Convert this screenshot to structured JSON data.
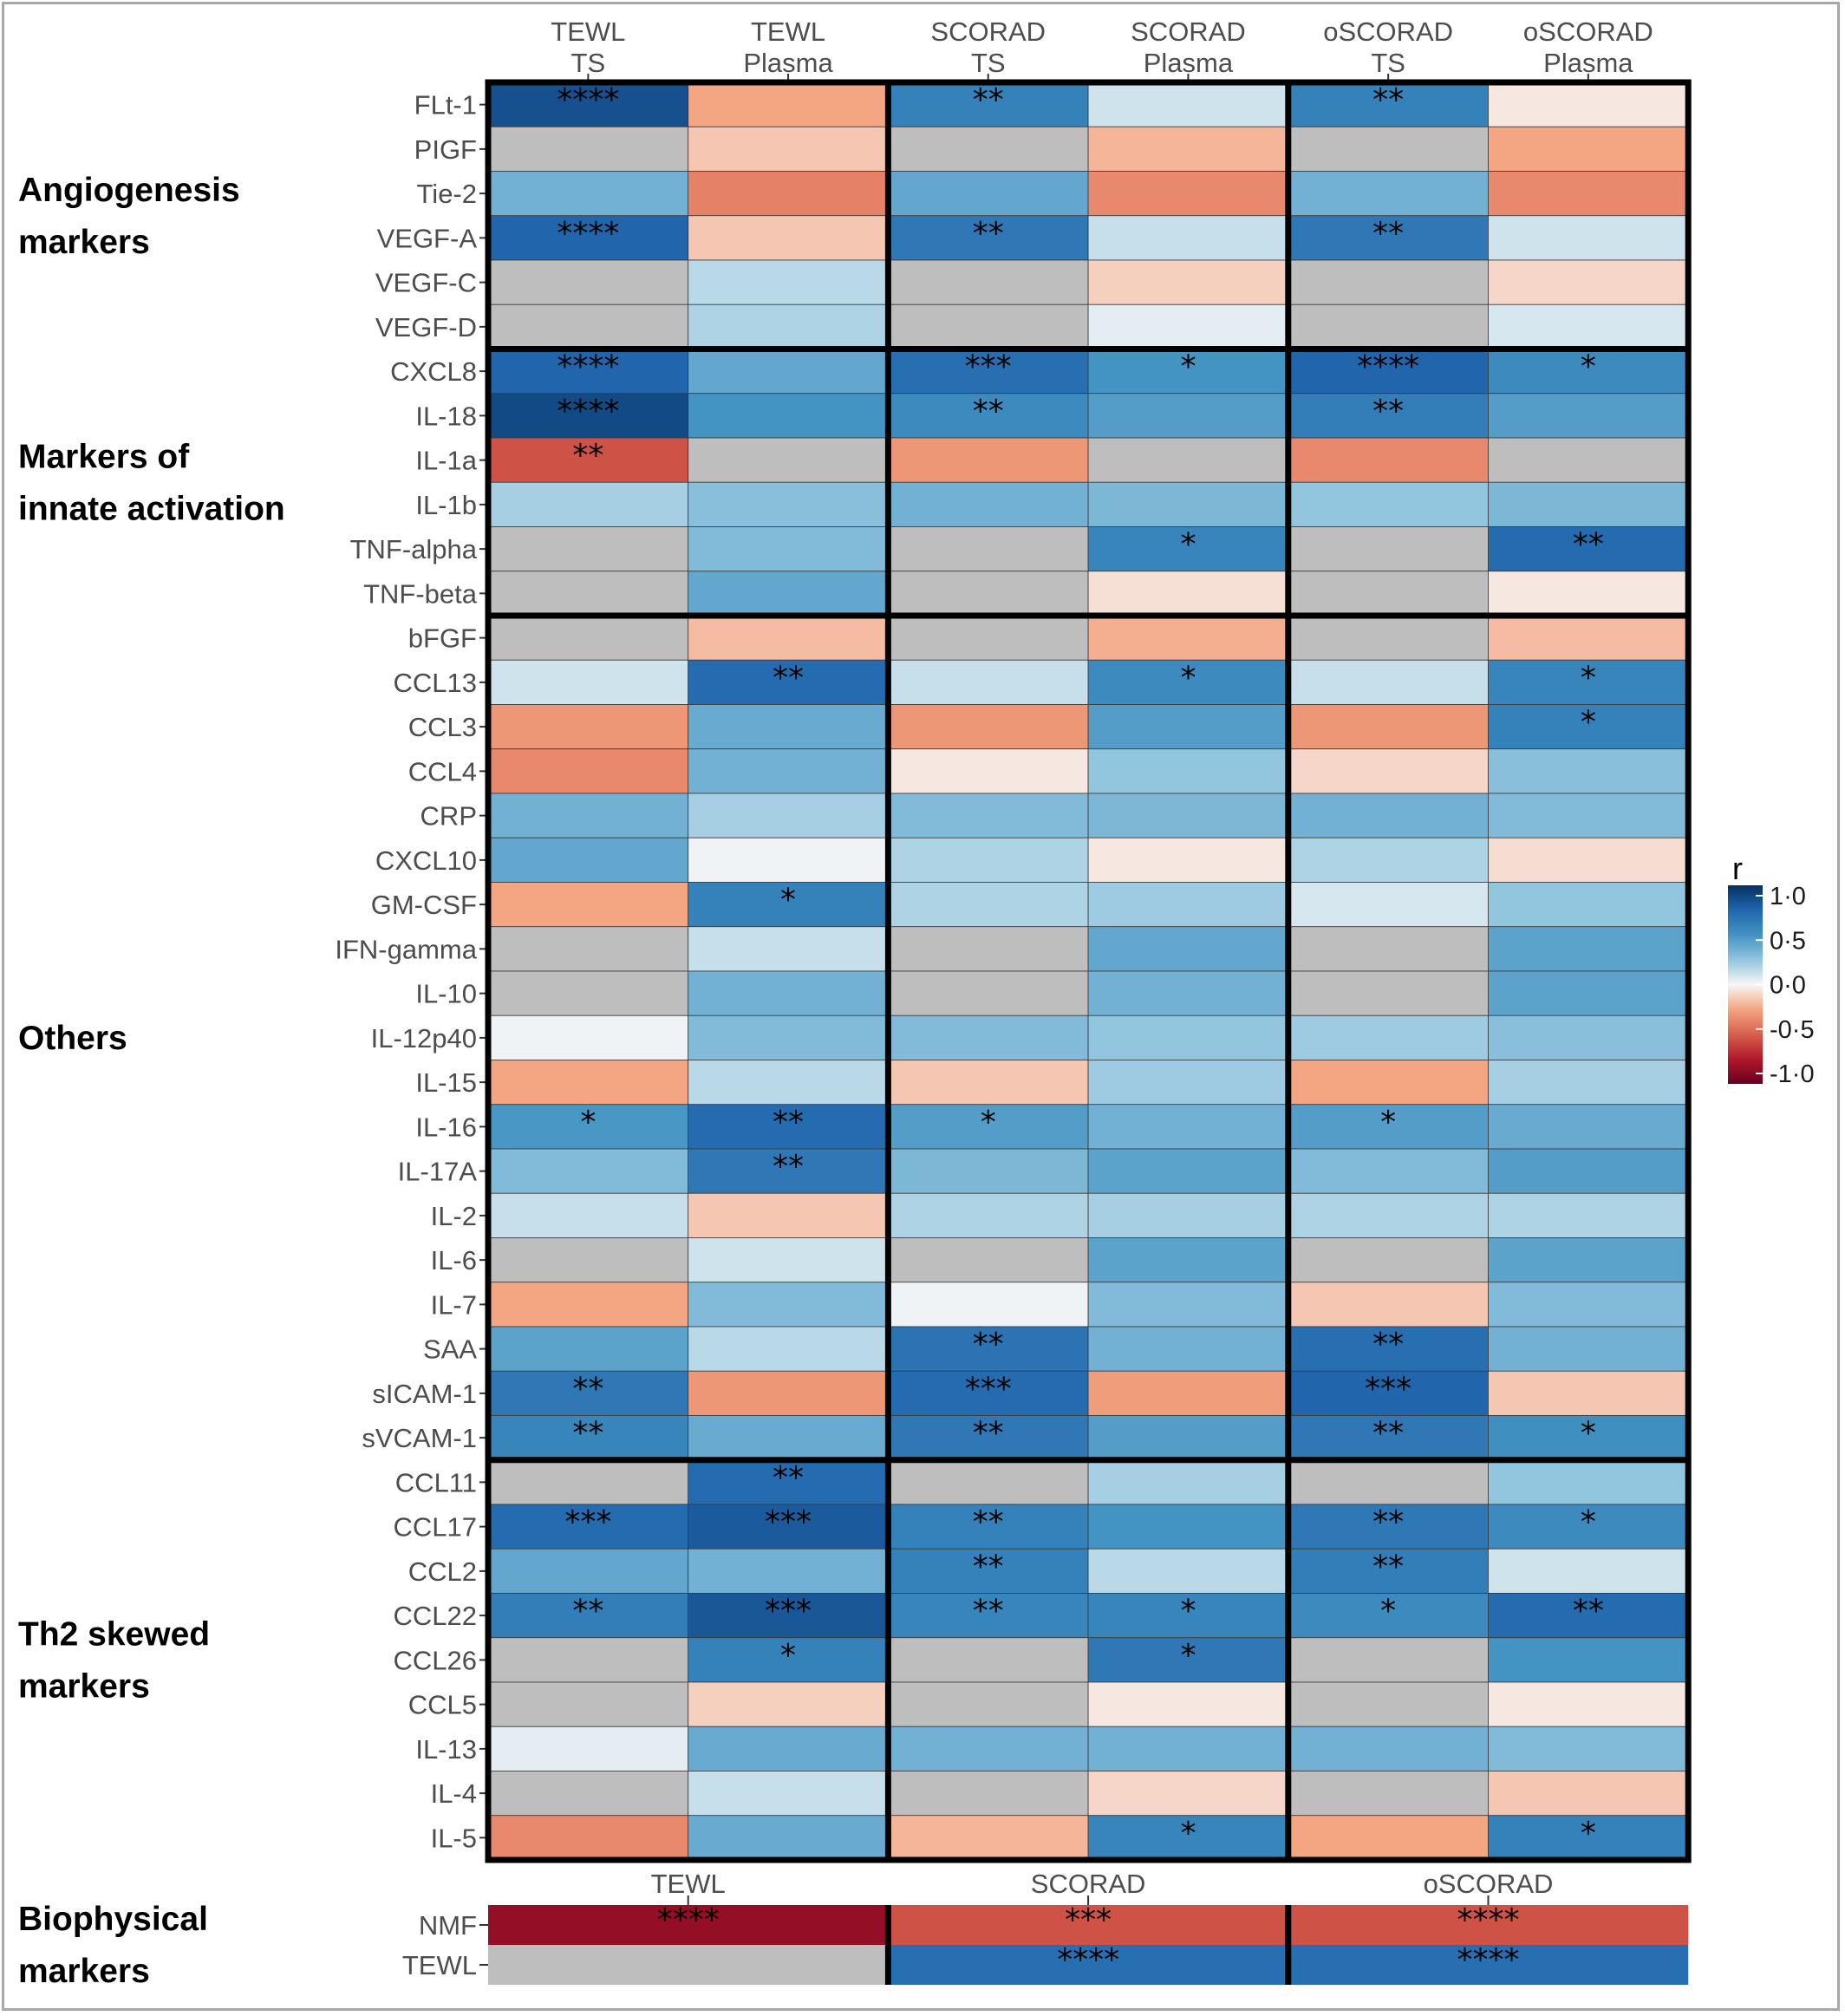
{
  "chart_data": [
    {
      "type": "heatmap",
      "columns": [
        {
          "line1": "TEWL",
          "line2": "TS"
        },
        {
          "line1": "TEWL",
          "line2": "Plasma"
        },
        {
          "line1": "SCORAD",
          "line2": "TS"
        },
        {
          "line1": "SCORAD",
          "line2": "Plasma"
        },
        {
          "line1": "oSCORAD",
          "line2": "TS"
        },
        {
          "line1": "oSCORAD",
          "line2": "Plasma"
        }
      ],
      "groups": [
        {
          "label_lines": [
            "Angiogenesis",
            "markers"
          ],
          "rows": [
            {
              "name": "FLt-1",
              "r": [
                0.85,
                -0.25,
                0.6,
                0.1,
                0.6,
                -0.05
              ],
              "sig": [
                "****",
                "",
                "**",
                "",
                "**",
                ""
              ]
            },
            {
              "name": "PIGF",
              "r": [
                null,
                -0.15,
                null,
                -0.2,
                null,
                -0.25
              ],
              "sig": [
                "",
                "",
                "",
                "",
                "",
                ""
              ]
            },
            {
              "name": "Tie-2",
              "r": [
                0.35,
                -0.38,
                0.4,
                -0.35,
                0.35,
                -0.35
              ],
              "sig": [
                "",
                "",
                "",
                "",
                "",
                ""
              ]
            },
            {
              "name": "VEGF-A",
              "r": [
                0.75,
                -0.15,
                0.65,
                0.12,
                0.65,
                0.1
              ],
              "sig": [
                "****",
                "",
                "**",
                "",
                "**",
                ""
              ]
            },
            {
              "name": "VEGF-C",
              "r": [
                null,
                0.15,
                null,
                -0.12,
                null,
                -0.1
              ],
              "sig": [
                "",
                "",
                "",
                "",
                "",
                ""
              ]
            },
            {
              "name": "VEGF-D",
              "r": [
                null,
                0.18,
                null,
                0.05,
                null,
                0.08
              ],
              "sig": [
                "",
                "",
                "",
                "",
                "",
                ""
              ]
            }
          ]
        },
        {
          "label_lines": [
            "Markers of",
            "innate activation"
          ],
          "rows": [
            {
              "name": "CXCL8",
              "r": [
                0.75,
                0.4,
                0.7,
                0.5,
                0.75,
                0.55
              ],
              "sig": [
                "****",
                "",
                "***",
                "*",
                "****",
                "*"
              ]
            },
            {
              "name": "IL-18",
              "r": [
                0.88,
                0.5,
                0.55,
                0.45,
                0.62,
                0.45
              ],
              "sig": [
                "****",
                "",
                "**",
                "",
                "**",
                ""
              ]
            },
            {
              "name": "IL-1a",
              "r": [
                -0.55,
                null,
                -0.3,
                null,
                -0.35,
                null
              ],
              "sig": [
                "**",
                "",
                "",
                "",
                "",
                ""
              ]
            },
            {
              "name": "IL-1b",
              "r": [
                0.2,
                0.28,
                0.35,
                0.32,
                0.25,
                0.32
              ],
              "sig": [
                "",
                "",
                "",
                "",
                "",
                ""
              ]
            },
            {
              "name": "TNF-alpha",
              "r": [
                null,
                0.3,
                null,
                0.58,
                null,
                0.72
              ],
              "sig": [
                "",
                "",
                "",
                "*",
                "",
                "**"
              ]
            },
            {
              "name": "TNF-beta",
              "r": [
                null,
                0.4,
                null,
                -0.07,
                null,
                -0.05
              ],
              "sig": [
                "",
                "",
                "",
                "",
                "",
                ""
              ]
            }
          ]
        },
        {
          "label_lines": [
            "Others"
          ],
          "rows": [
            {
              "name": "bFGF",
              "r": [
                null,
                -0.18,
                null,
                -0.22,
                null,
                -0.18
              ],
              "sig": [
                "",
                "",
                "",
                "",
                "",
                ""
              ]
            },
            {
              "name": "CCL13",
              "r": [
                0.1,
                0.72,
                0.12,
                0.55,
                0.12,
                0.58
              ],
              "sig": [
                "",
                "**",
                "",
                "*",
                "",
                "*"
              ]
            },
            {
              "name": "CCL3",
              "r": [
                -0.3,
                0.38,
                -0.3,
                0.45,
                -0.3,
                0.6
              ],
              "sig": [
                "",
                "",
                "",
                "",
                "",
                "*"
              ]
            },
            {
              "name": "CCL4",
              "r": [
                -0.35,
                0.35,
                -0.05,
                0.25,
                -0.1,
                0.28
              ],
              "sig": [
                "",
                "",
                "",
                "",
                "",
                ""
              ]
            },
            {
              "name": "CRP",
              "r": [
                0.35,
                0.2,
                0.3,
                0.32,
                0.35,
                0.3
              ],
              "sig": [
                "",
                "",
                "",
                "",
                "",
                ""
              ]
            },
            {
              "name": "CXCL10",
              "r": [
                0.4,
                0.02,
                0.18,
                -0.05,
                0.18,
                -0.08
              ],
              "sig": [
                "",
                "",
                "",
                "",
                "",
                ""
              ]
            },
            {
              "name": "GM-CSF",
              "r": [
                -0.25,
                0.6,
                0.18,
                0.22,
                0.08,
                0.25
              ],
              "sig": [
                "",
                "*",
                "",
                "",
                "",
                ""
              ]
            },
            {
              "name": "IFN-gamma",
              "r": [
                null,
                0.12,
                null,
                0.4,
                null,
                0.42
              ],
              "sig": [
                "",
                "",
                "",
                "",
                "",
                ""
              ]
            },
            {
              "name": "IL-10",
              "r": [
                null,
                0.35,
                null,
                0.35,
                null,
                0.42
              ],
              "sig": [
                "",
                "",
                "",
                "",
                "",
                ""
              ]
            },
            {
              "name": "IL-12p40",
              "r": [
                0.02,
                0.3,
                0.3,
                0.25,
                0.22,
                0.28
              ],
              "sig": [
                "",
                "",
                "",
                "",
                "",
                ""
              ]
            },
            {
              "name": "IL-15",
              "r": [
                -0.25,
                0.15,
                -0.15,
                0.22,
                -0.25,
                0.2
              ],
              "sig": [
                "",
                "",
                "",
                "",
                "",
                ""
              ]
            },
            {
              "name": "IL-16",
              "r": [
                0.48,
                0.72,
                0.45,
                0.35,
                0.45,
                0.38
              ],
              "sig": [
                "*",
                "**",
                "*",
                "",
                "*",
                ""
              ]
            },
            {
              "name": "IL-17A",
              "r": [
                0.3,
                0.65,
                0.32,
                0.42,
                0.3,
                0.45
              ],
              "sig": [
                "",
                "**",
                "",
                "",
                "",
                ""
              ]
            },
            {
              "name": "IL-2",
              "r": [
                0.12,
                -0.15,
                0.18,
                0.2,
                0.18,
                0.18
              ],
              "sig": [
                "",
                "",
                "",
                "",
                "",
                ""
              ]
            },
            {
              "name": "IL-6",
              "r": [
                null,
                0.1,
                null,
                0.42,
                null,
                0.42
              ],
              "sig": [
                "",
                "",
                "",
                "",
                "",
                ""
              ]
            },
            {
              "name": "IL-7",
              "r": [
                -0.25,
                0.3,
                0.02,
                0.3,
                -0.15,
                0.3
              ],
              "sig": [
                "",
                "",
                "",
                "",
                "",
                ""
              ]
            },
            {
              "name": "SAA",
              "r": [
                0.42,
                0.15,
                0.68,
                0.35,
                0.7,
                0.35
              ],
              "sig": [
                "",
                "",
                "**",
                "",
                "**",
                ""
              ]
            },
            {
              "name": "sICAM-1",
              "r": [
                0.65,
                -0.3,
                0.72,
                -0.28,
                0.75,
                -0.15
              ],
              "sig": [
                "**",
                "",
                "***",
                "",
                "***",
                ""
              ]
            },
            {
              "name": "sVCAM-1",
              "r": [
                0.58,
                0.38,
                0.65,
                0.45,
                0.65,
                0.52
              ],
              "sig": [
                "**",
                "",
                "**",
                "",
                "**",
                "*"
              ]
            }
          ]
        },
        {
          "label_lines": [
            "Th2 skewed",
            "markers"
          ],
          "rows": [
            {
              "name": "CCL11",
              "r": [
                null,
                0.72,
                null,
                0.2,
                null,
                0.25
              ],
              "sig": [
                "",
                "**",
                "",
                "",
                "",
                ""
              ]
            },
            {
              "name": "CCL17",
              "r": [
                0.72,
                0.8,
                0.6,
                0.5,
                0.65,
                0.55
              ],
              "sig": [
                "***",
                "***",
                "**",
                "",
                "**",
                "*"
              ]
            },
            {
              "name": "CCL2",
              "r": [
                0.4,
                0.35,
                0.6,
                0.15,
                0.62,
                0.1
              ],
              "sig": [
                "",
                "",
                "**",
                "",
                "**",
                ""
              ]
            },
            {
              "name": "CCL22",
              "r": [
                0.62,
                0.82,
                0.58,
                0.58,
                0.55,
                0.72
              ],
              "sig": [
                "**",
                "***",
                "**",
                "*",
                "*",
                "**"
              ]
            },
            {
              "name": "CCL26",
              "r": [
                null,
                0.6,
                null,
                0.65,
                null,
                0.5
              ],
              "sig": [
                "",
                "*",
                "",
                "*",
                "",
                ""
              ]
            },
            {
              "name": "CCL5",
              "r": [
                null,
                -0.12,
                null,
                -0.05,
                null,
                -0.05
              ],
              "sig": [
                "",
                "",
                "",
                "",
                "",
                ""
              ]
            },
            {
              "name": "IL-13",
              "r": [
                0.05,
                0.38,
                0.35,
                0.35,
                0.35,
                0.3
              ],
              "sig": [
                "",
                "",
                "",
                "",
                "",
                ""
              ]
            },
            {
              "name": "IL-4",
              "r": [
                null,
                0.12,
                null,
                -0.1,
                null,
                -0.15
              ],
              "sig": [
                "",
                "",
                "",
                "",
                "",
                ""
              ]
            },
            {
              "name": "IL-5",
              "r": [
                -0.35,
                0.38,
                -0.2,
                0.58,
                -0.25,
                0.6
              ],
              "sig": [
                "",
                "",
                "",
                "*",
                "",
                "*"
              ]
            }
          ]
        }
      ],
      "legend": {
        "title": "r",
        "ticks": [
          "1·0",
          "0·5",
          "0·0",
          "-0·5",
          "-1·0"
        ],
        "range": [
          -1.0,
          1.0
        ],
        "colors": {
          "neg": "#67001f",
          "mid": "#f7f7f7",
          "pos": "#053061",
          "na": "#bebebe"
        }
      }
    },
    {
      "type": "heatmap",
      "label_lines": [
        "Biophysical",
        "markers"
      ],
      "columns": [
        "TEWL",
        "SCORAD",
        "oSCORAD"
      ],
      "rows": [
        {
          "name": "NMF",
          "r": [
            -0.85,
            -0.55,
            -0.55
          ],
          "sig": [
            "****",
            "***",
            "****"
          ]
        },
        {
          "name": "TEWL",
          "r": [
            null,
            0.7,
            0.7
          ],
          "sig": [
            "",
            "****",
            "****"
          ]
        }
      ]
    }
  ]
}
